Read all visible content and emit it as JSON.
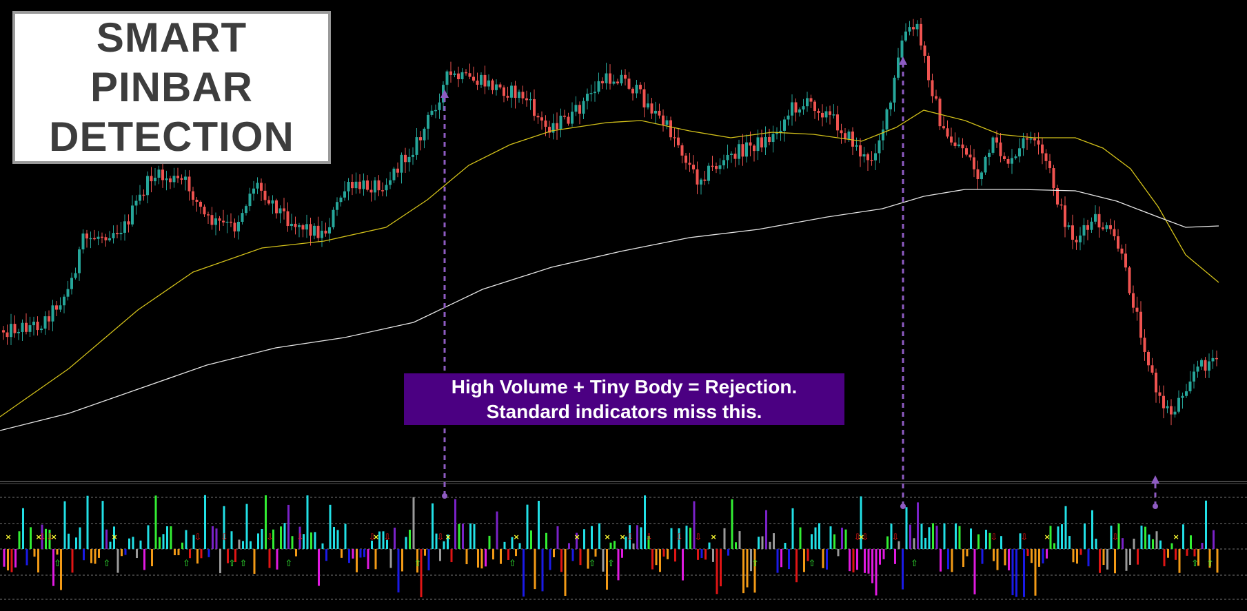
{
  "title": {
    "lines": [
      "SMART",
      "PINBAR",
      "DETECTION"
    ]
  },
  "annotation": {
    "lines": [
      "High Volume + Tiny Body = Rejection.",
      "Standard indicators miss this."
    ]
  },
  "colors": {
    "background": "#000000",
    "bull_candle": "#26a69a",
    "bear_candle": "#ef5350",
    "ma_fast": "#d4c21a",
    "ma_slow": "#e8e8e8",
    "annotation_bg": "#4b0082",
    "arrow": "#8e5bc2",
    "vol_colors": {
      "cyan": "#22e0e6",
      "green": "#33ee33",
      "purple": "#7a22c8",
      "orange": "#f29a16",
      "red": "#e01515",
      "blue": "#1a1ae6",
      "magenta": "#e01ae0",
      "gray": "#9a9a9a"
    }
  },
  "chart_data": [
    {
      "type": "candlestick",
      "title": "",
      "description_only": true,
      "series": [
        {
          "style": "line",
          "color": "yellow"
        },
        {
          "style": "line",
          "color": "white"
        }
      ],
      "grid": false
    },
    {
      "type": "bar",
      "title": "",
      "description_only": true,
      "markers": [
        "cross",
        "up-arrow",
        "down-arrow"
      ],
      "grid": "dashed horizontal"
    }
  ]
}
